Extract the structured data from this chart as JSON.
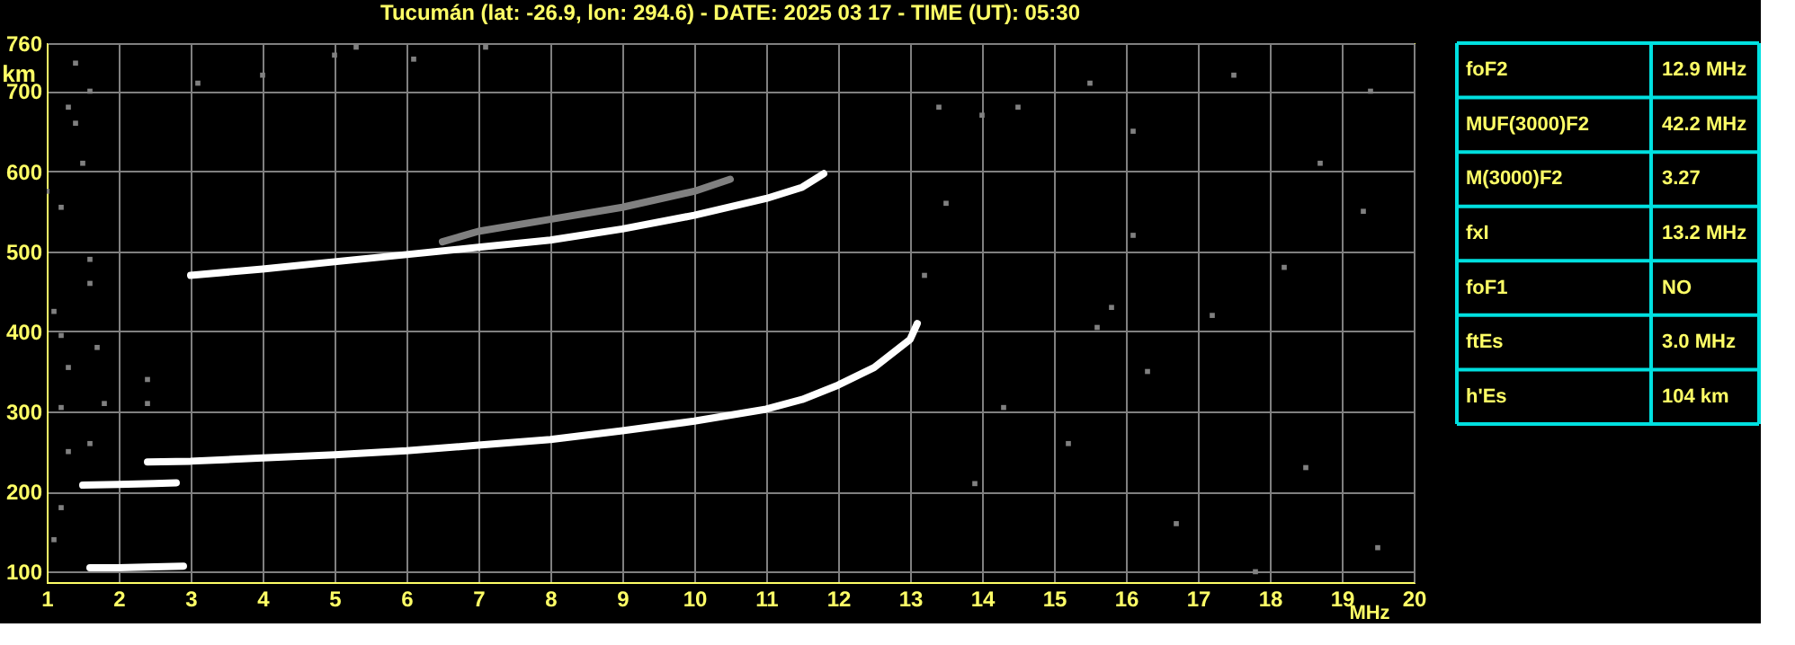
{
  "chart_data": [
    {
      "type": "line",
      "title": "Tucumán (lat: -26.9, lon: 294.6) - DATE: 2025 03 17 - TIME (UT): 05:30",
      "xlabel": "MHz",
      "ylabel": "km",
      "xlim": [
        1,
        20
      ],
      "ylim": [
        87,
        760
      ],
      "xticks": [
        1,
        2,
        3,
        4,
        5,
        6,
        7,
        8,
        9,
        10,
        11,
        12,
        13,
        14,
        15,
        16,
        17,
        18,
        19,
        20
      ],
      "yticks": [
        100,
        200,
        300,
        400,
        500,
        600,
        700,
        760
      ],
      "grid": true,
      "legend": false,
      "line_style": "solid",
      "series": [
        {
          "type": "line",
          "color": "#ffffff",
          "x": [
            1.6,
            2.0,
            2.5,
            2.9
          ],
          "values": [
            105,
            105,
            106,
            107
          ]
        },
        {
          "type": "line",
          "color": "#ffffff",
          "x": [
            1.5,
            2.0,
            2.5,
            2.8
          ],
          "values": [
            208,
            209,
            210,
            211
          ]
        },
        {
          "type": "line",
          "color": "#ffffff",
          "x": [
            2.4,
            3,
            4,
            5,
            6,
            7,
            8,
            9,
            10,
            11,
            11.5,
            12,
            12.5,
            13,
            13.1
          ],
          "values": [
            237,
            238,
            242,
            246,
            251,
            258,
            265,
            276,
            288,
            303,
            315,
            333,
            355,
            390,
            410
          ]
        },
        {
          "type": "line",
          "color": "#ffffff",
          "x": [
            3,
            4,
            5,
            6,
            7,
            8,
            9,
            10,
            11,
            11.5,
            11.8
          ],
          "values": [
            470,
            478,
            487,
            496,
            505,
            514,
            528,
            545,
            566,
            580,
            597
          ]
        },
        {
          "type": "line",
          "color": "#808080",
          "x": [
            6.5,
            7,
            8,
            9,
            10,
            10.5
          ],
          "values": [
            512,
            525,
            540,
            555,
            575,
            590
          ]
        },
        {
          "type": "scatter",
          "color": "#808080",
          "marker": "square",
          "x": [
            1.4,
            1.6,
            1.3,
            1.4,
            1.5,
            1.2,
            1.6,
            1.6,
            1.1,
            1.2,
            1.3,
            1.2,
            1.7,
            1.8,
            2.4,
            1.3,
            1.6,
            2.4,
            1.2,
            1.1,
            4.0,
            3.1,
            5.0,
            5.3,
            6.1,
            7.1,
            1.0,
            13.4,
            14.0,
            14.5,
            15.5,
            16.1,
            17.5,
            13.5,
            15.6,
            15.8,
            16.1,
            18.2,
            19.3,
            14.3,
            15.2,
            16.7,
            17.8,
            18.5,
            19.5,
            13.9,
            16.3,
            17.2,
            18.7,
            19.4,
            13.2
          ],
          "values": [
            735,
            700,
            680,
            660,
            610,
            555,
            490,
            460,
            425,
            395,
            355,
            305,
            380,
            310,
            310,
            250,
            260,
            340,
            180,
            140,
            720,
            710,
            745,
            755,
            740,
            755,
            575,
            680,
            670,
            680,
            710,
            650,
            720,
            560,
            405,
            430,
            520,
            480,
            550,
            305,
            260,
            160,
            100,
            230,
            130,
            210,
            350,
            420,
            610,
            700,
            470
          ]
        }
      ]
    },
    {
      "type": "other",
      "categories": [
        "foF2",
        "MUF(3000)F2",
        "M(3000)F2",
        "fxI",
        "foF1",
        "ftEs",
        "h'Es"
      ],
      "value_labels": [
        "12.9 MHz",
        "42.2 MHz",
        "3.27",
        "13.2 MHz",
        "NO",
        "3.0 MHz",
        "104 km"
      ]
    }
  ]
}
